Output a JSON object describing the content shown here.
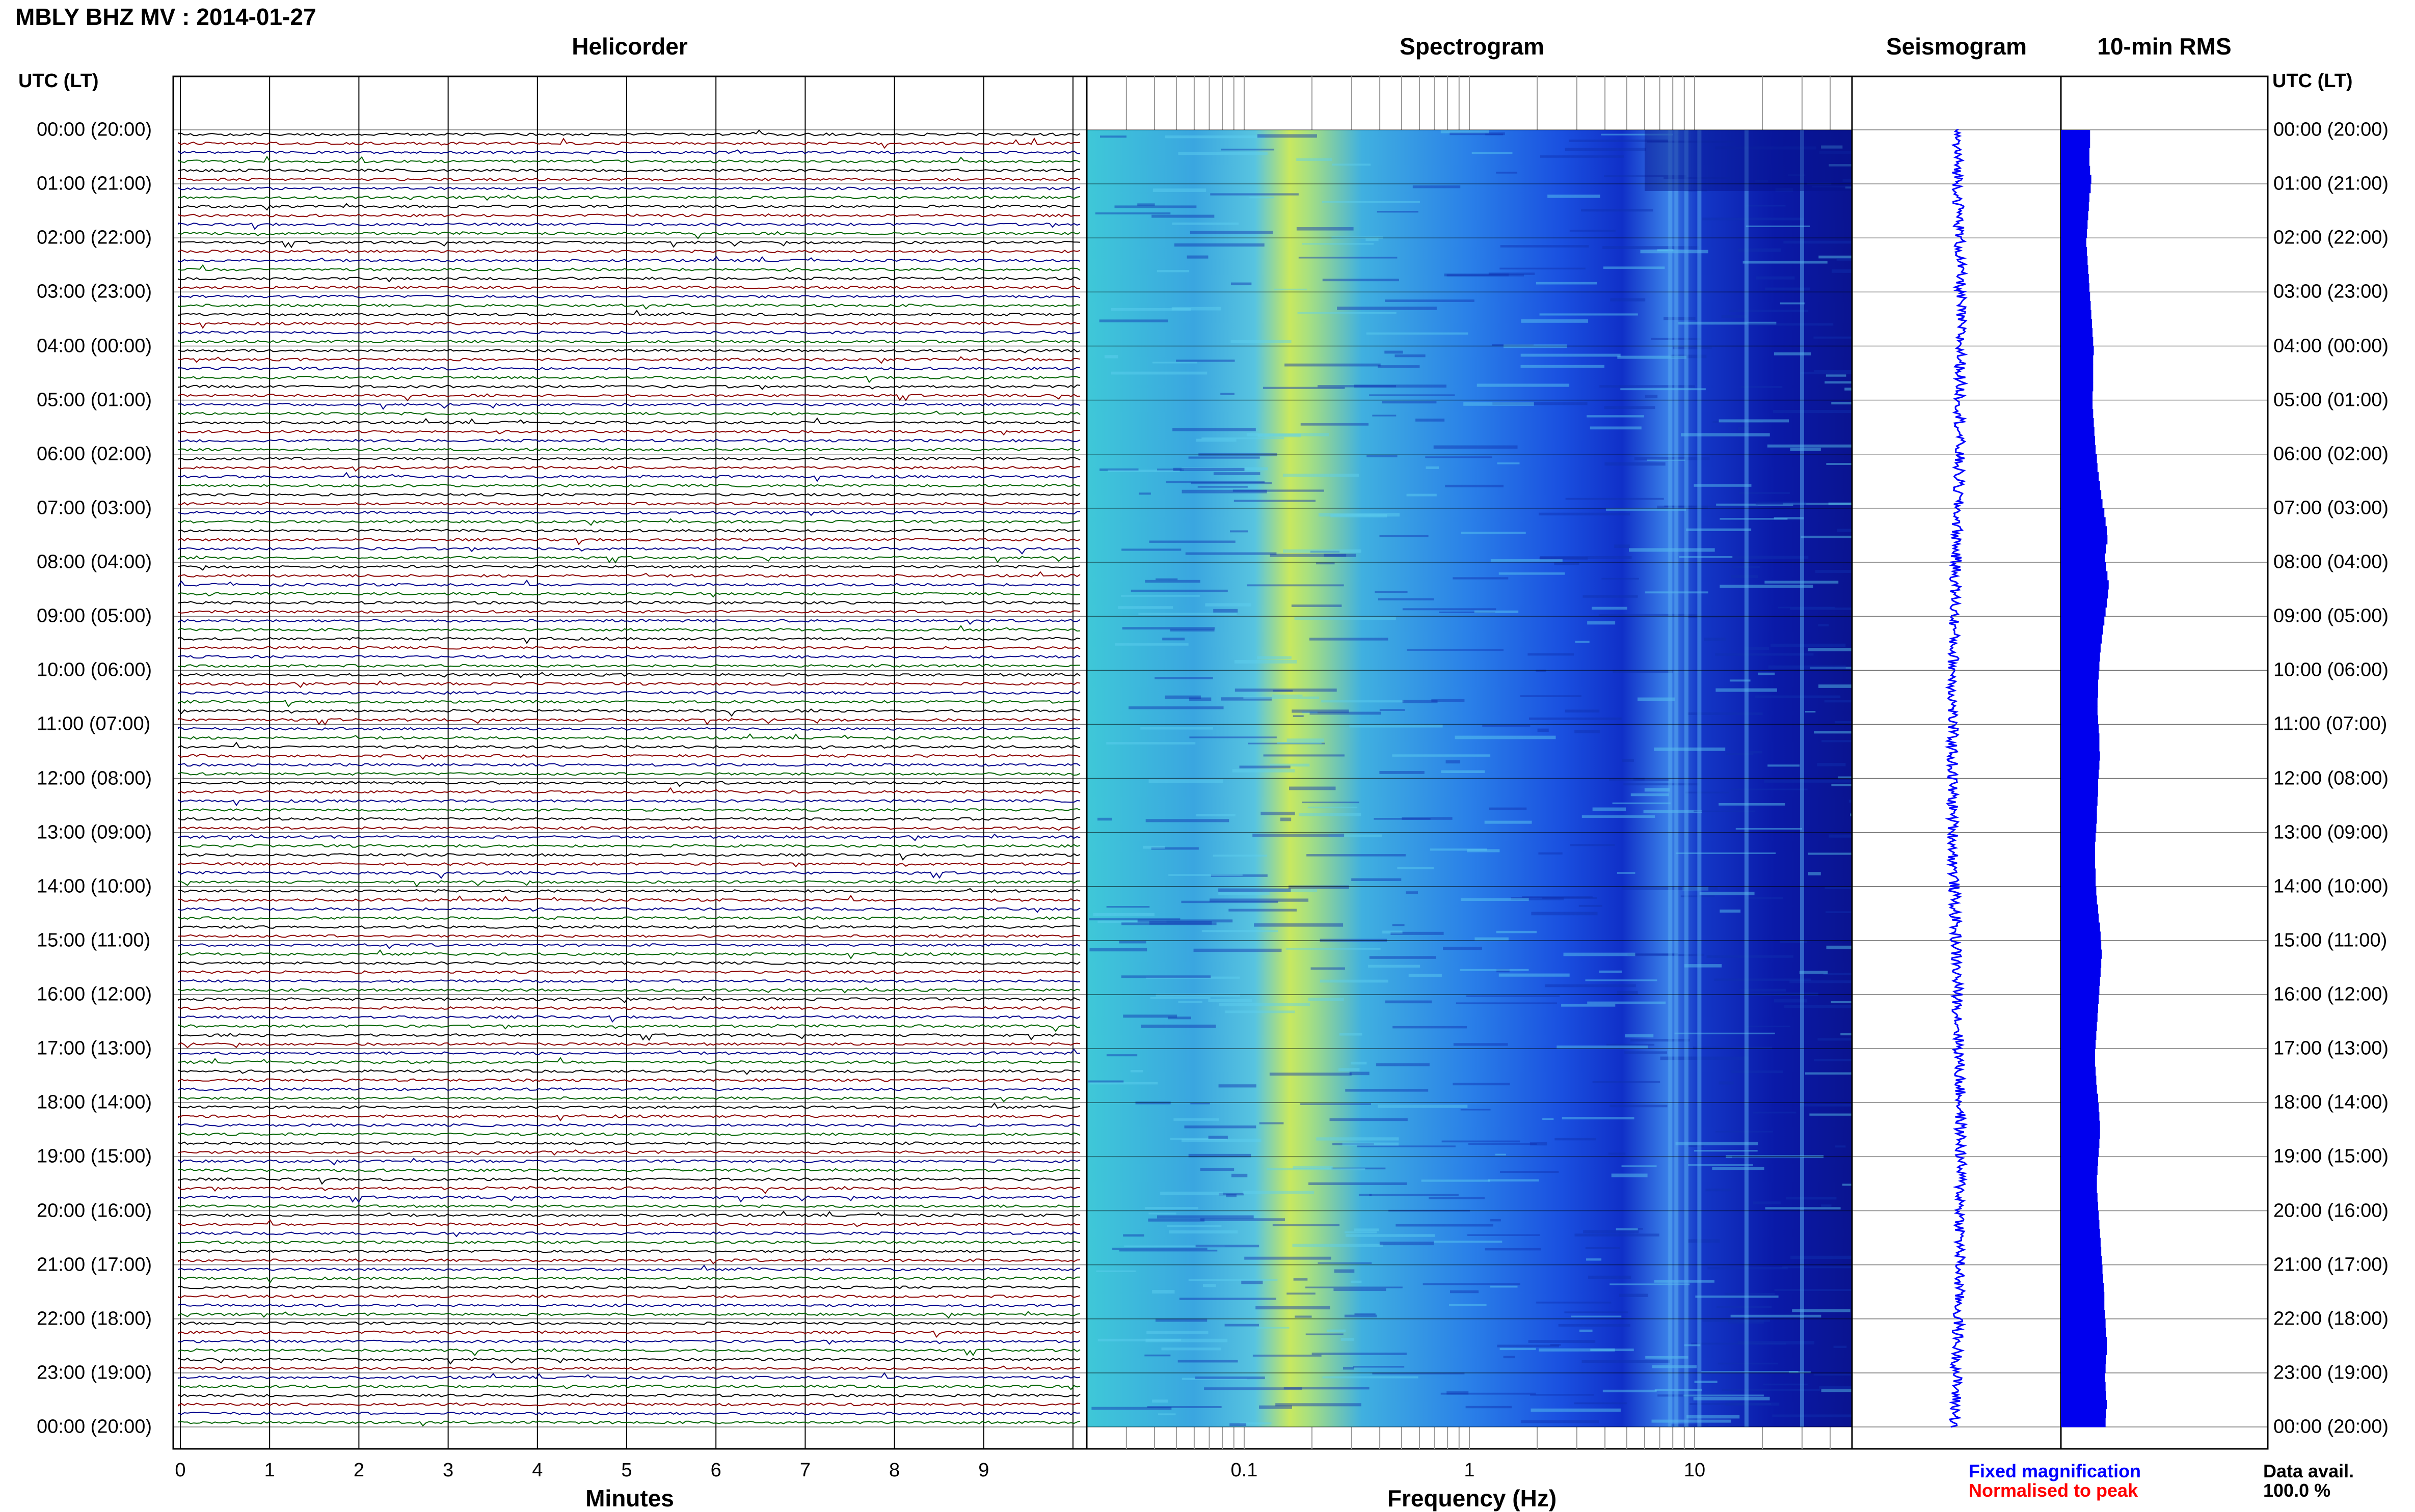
{
  "title": "MBLY BHZ MV : 2014-01-27",
  "panels": {
    "helicorder": "Helicorder",
    "spectrogram": "Spectrogram",
    "seismogram": "Seismogram",
    "rms": "10-min RMS"
  },
  "utc_label_left": "UTC (LT)",
  "utc_label_right": "UTC (LT)",
  "time_labels": [
    "00:00 (20:00)",
    "01:00 (21:00)",
    "02:00 (22:00)",
    "03:00 (23:00)",
    "04:00 (00:00)",
    "05:00 (01:00)",
    "06:00 (02:00)",
    "07:00 (03:00)",
    "08:00 (04:00)",
    "09:00 (05:00)",
    "10:00 (06:00)",
    "11:00 (07:00)",
    "12:00 (08:00)",
    "13:00 (09:00)",
    "14:00 (10:00)",
    "15:00 (11:00)",
    "16:00 (12:00)",
    "17:00 (13:00)",
    "18:00 (14:00)",
    "19:00 (15:00)",
    "20:00 (16:00)",
    "21:00 (17:00)",
    "22:00 (18:00)",
    "23:00 (19:00)",
    "00:00 (20:00)"
  ],
  "minutes_axis": {
    "label": "Minutes",
    "ticks": [
      "0",
      "1",
      "2",
      "3",
      "4",
      "5",
      "6",
      "7",
      "8",
      "9"
    ]
  },
  "frequency_axis": {
    "label": "Frequency (Hz)",
    "ticks": [
      "0.1",
      "1",
      "10"
    ]
  },
  "legend": {
    "fixed": "Fixed magnification",
    "normalised": "Normalised to peak",
    "fixed_color": "#0000ff",
    "normalised_color": "#ff0000"
  },
  "data_avail": {
    "label": "Data avail.",
    "value": "100.0 %"
  },
  "trace_colors": [
    "#000000",
    "#8b0000",
    "#00008b",
    "#006400"
  ],
  "chart_data": [
    {
      "type": "line",
      "panel": "Helicorder",
      "xlabel": "Minutes",
      "xlim": [
        0,
        10
      ],
      "row_minutes": 10,
      "rows": 144,
      "color_cycle": [
        "black",
        "red",
        "blue",
        "green"
      ]
    },
    {
      "type": "heatmap",
      "panel": "Spectrogram",
      "xlabel": "Frequency (Hz)",
      "xscale": "log",
      "xlim": [
        0.02,
        50
      ],
      "colormap": "jet",
      "peak_band_hz": [
        0.2,
        0.3
      ]
    },
    {
      "type": "line",
      "panel": "Seismogram",
      "orientation": "vertical"
    },
    {
      "type": "bar",
      "panel": "10-min RMS",
      "orientation": "horizontal",
      "bins": 144,
      "relative_values": [
        0.47,
        0.47,
        0.46,
        0.46,
        0.47,
        0.49,
        0.48,
        0.46,
        0.45,
        0.44,
        0.43,
        0.42,
        0.41,
        0.42,
        0.43,
        0.44,
        0.45,
        0.46,
        0.47,
        0.48,
        0.49,
        0.5,
        0.51,
        0.52,
        0.53,
        0.52,
        0.52,
        0.52,
        0.52,
        0.51,
        0.51,
        0.52,
        0.53,
        0.54,
        0.55,
        0.56,
        0.58,
        0.59,
        0.61,
        0.63,
        0.65,
        0.67,
        0.7,
        0.72,
        0.74,
        0.75,
        0.73,
        0.71,
        0.73,
        0.75,
        0.77,
        0.76,
        0.74,
        0.72,
        0.7,
        0.68,
        0.66,
        0.64,
        0.63,
        0.62,
        0.61,
        0.6,
        0.6,
        0.59,
        0.59,
        0.6,
        0.61,
        0.62,
        0.62,
        0.63,
        0.62,
        0.61,
        0.6,
        0.6,
        0.59,
        0.58,
        0.58,
        0.57,
        0.56,
        0.55,
        0.55,
        0.55,
        0.56,
        0.56,
        0.57,
        0.58,
        0.6,
        0.61,
        0.63,
        0.64,
        0.65,
        0.66,
        0.65,
        0.64,
        0.63,
        0.62,
        0.61,
        0.6,
        0.59,
        0.58,
        0.57,
        0.56,
        0.55,
        0.55,
        0.56,
        0.57,
        0.58,
        0.6,
        0.61,
        0.62,
        0.63,
        0.63,
        0.62,
        0.61,
        0.6,
        0.59,
        0.58,
        0.58,
        0.59,
        0.6,
        0.61,
        0.62,
        0.63,
        0.64,
        0.65,
        0.66,
        0.67,
        0.68,
        0.69,
        0.7,
        0.7,
        0.71,
        0.72,
        0.73,
        0.74,
        0.74,
        0.73,
        0.72,
        0.71,
        0.72,
        0.73,
        0.74,
        0.73,
        0.72
      ]
    }
  ]
}
